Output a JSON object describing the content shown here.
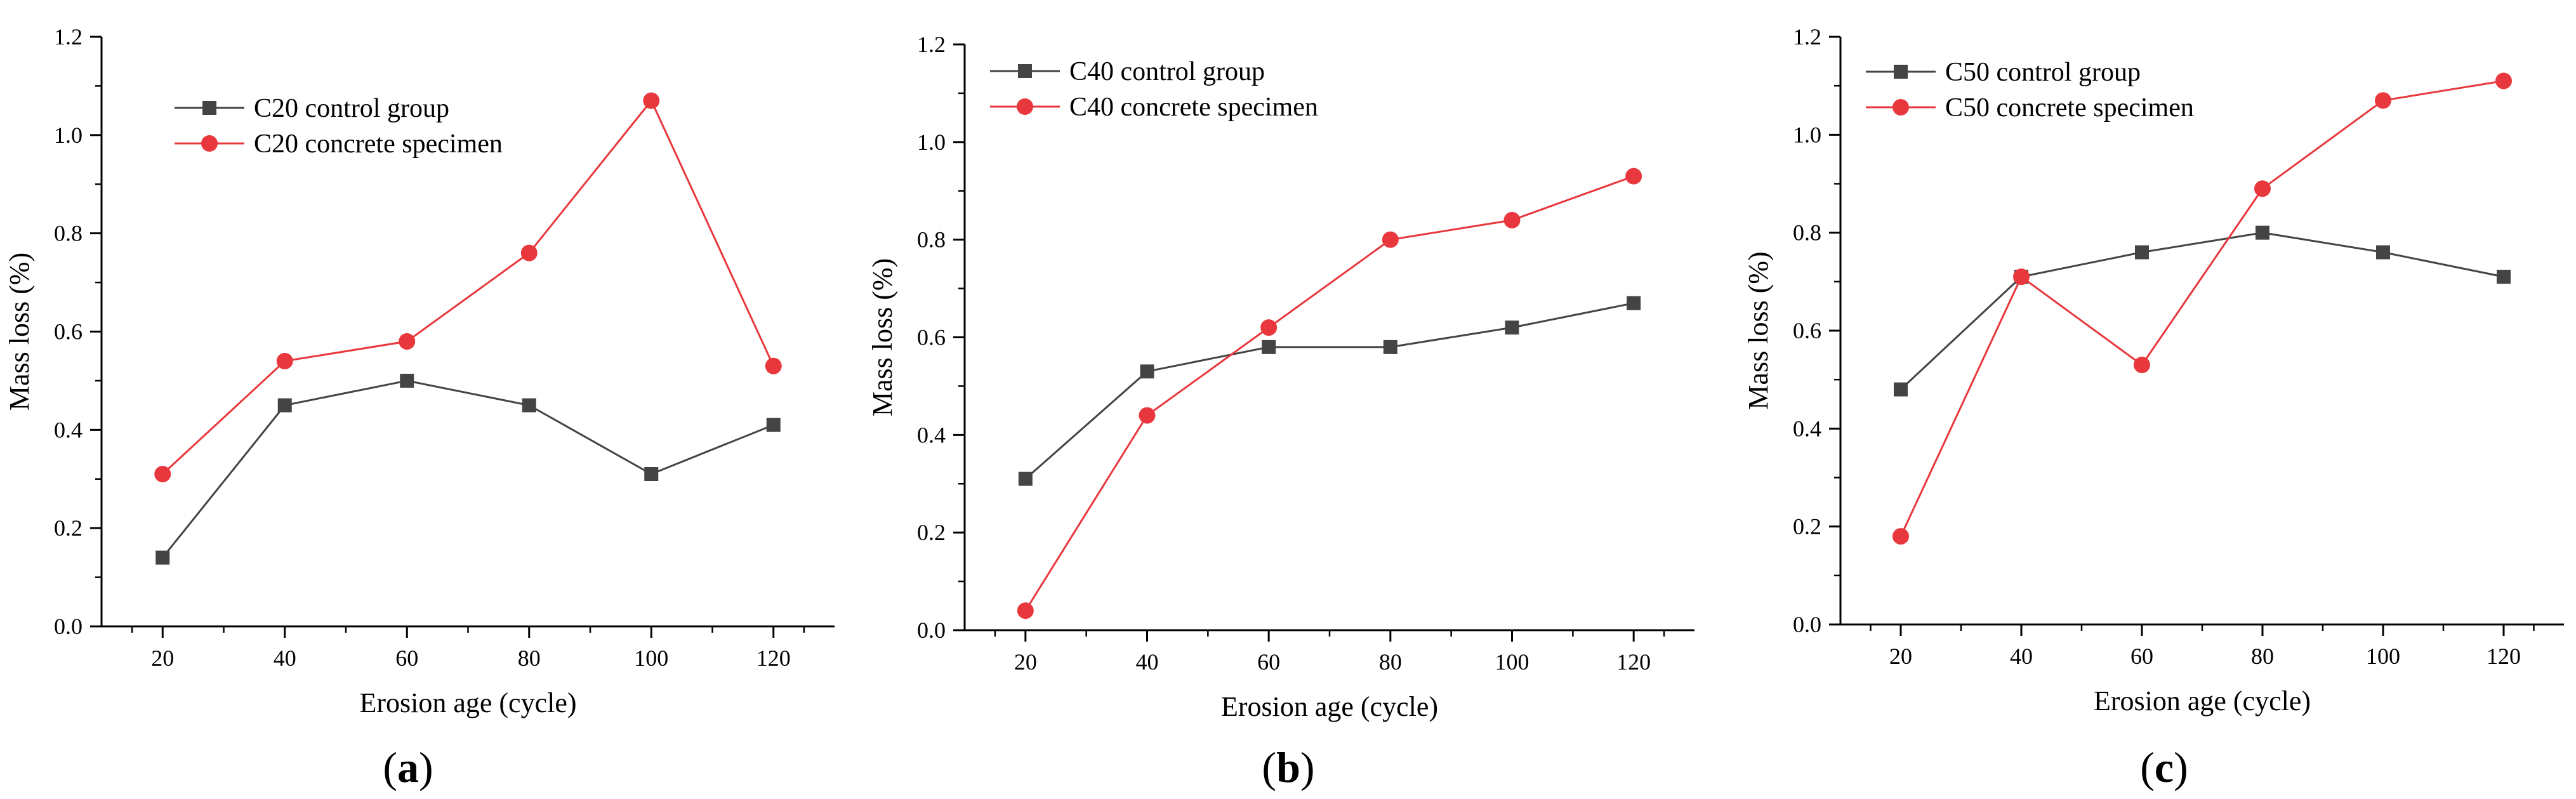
{
  "colors": {
    "control": "#444444",
    "specimen": "#e8383d",
    "axis": "#000000"
  },
  "chart_data": [
    {
      "type": "line",
      "panel_label": "a",
      "xlabel": "Erosion age (cycle)",
      "ylabel": "Mass loss (%)",
      "xlim": [
        10,
        130
      ],
      "ylim": [
        0,
        1.2
      ],
      "x_ticks": [
        20,
        40,
        60,
        80,
        100,
        120
      ],
      "y_ticks": [
        0.0,
        0.2,
        0.4,
        0.6,
        0.8,
        1.0,
        1.2
      ],
      "x_tick_labels": [
        "20",
        "40",
        "60",
        "80",
        "100",
        "120"
      ],
      "y_tick_labels": [
        "0.0",
        "0.2",
        "0.4",
        "0.6",
        "0.8",
        "1.0",
        "1.2"
      ],
      "legend_position": "top-left",
      "x": [
        20,
        40,
        60,
        80,
        100,
        120
      ],
      "series": [
        {
          "name": "C20 control group",
          "marker": "square",
          "values": [
            0.14,
            0.45,
            0.5,
            0.45,
            0.31,
            0.41
          ]
        },
        {
          "name": "C20 concrete specimen",
          "marker": "circle",
          "values": [
            0.31,
            0.54,
            0.58,
            0.76,
            1.07,
            0.53
          ]
        }
      ]
    },
    {
      "type": "line",
      "panel_label": "b",
      "xlabel": "Erosion age (cycle)",
      "ylabel": "Mass loss (%)",
      "xlim": [
        10,
        130
      ],
      "ylim": [
        0,
        1.2
      ],
      "x_ticks": [
        20,
        40,
        60,
        80,
        100,
        120
      ],
      "y_ticks": [
        0.0,
        0.2,
        0.4,
        0.6,
        0.8,
        1.0,
        1.2
      ],
      "x_tick_labels": [
        "20",
        "40",
        "60",
        "80",
        "100",
        "120"
      ],
      "y_tick_labels": [
        "0.0",
        "0.2",
        "0.4",
        "0.6",
        "0.8",
        "1.0",
        "1.2"
      ],
      "legend_position": "top-left",
      "x": [
        20,
        40,
        60,
        80,
        100,
        120
      ],
      "series": [
        {
          "name": "C40 control group",
          "marker": "square",
          "values": [
            0.31,
            0.53,
            0.58,
            0.58,
            0.62,
            0.67
          ]
        },
        {
          "name": "C40 concrete specimen",
          "marker": "circle",
          "values": [
            0.04,
            0.44,
            0.62,
            0.8,
            0.84,
            0.93
          ]
        }
      ]
    },
    {
      "type": "line",
      "panel_label": "c",
      "xlabel": "Erosion age (cycle)",
      "ylabel": "Mass loss (%)",
      "xlim": [
        10,
        130
      ],
      "ylim": [
        0,
        1.2
      ],
      "x_ticks": [
        20,
        40,
        60,
        80,
        100,
        120
      ],
      "y_ticks": [
        0.0,
        0.2,
        0.4,
        0.6,
        0.8,
        1.0,
        1.2
      ],
      "x_tick_labels": [
        "20",
        "40",
        "60",
        "80",
        "100",
        "120"
      ],
      "y_tick_labels": [
        "0.0",
        "0.2",
        "0.4",
        "0.6",
        "0.8",
        "1.0",
        "1.2"
      ],
      "legend_position": "top-left",
      "x": [
        20,
        40,
        60,
        80,
        100,
        120
      ],
      "series": [
        {
          "name": "C50 control group",
          "marker": "square",
          "values": [
            0.48,
            0.71,
            0.76,
            0.8,
            0.76,
            0.71
          ]
        },
        {
          "name": "C50 concrete specimen",
          "marker": "circle",
          "values": [
            0.18,
            0.71,
            0.53,
            0.89,
            1.07,
            1.11
          ]
        }
      ]
    }
  ]
}
